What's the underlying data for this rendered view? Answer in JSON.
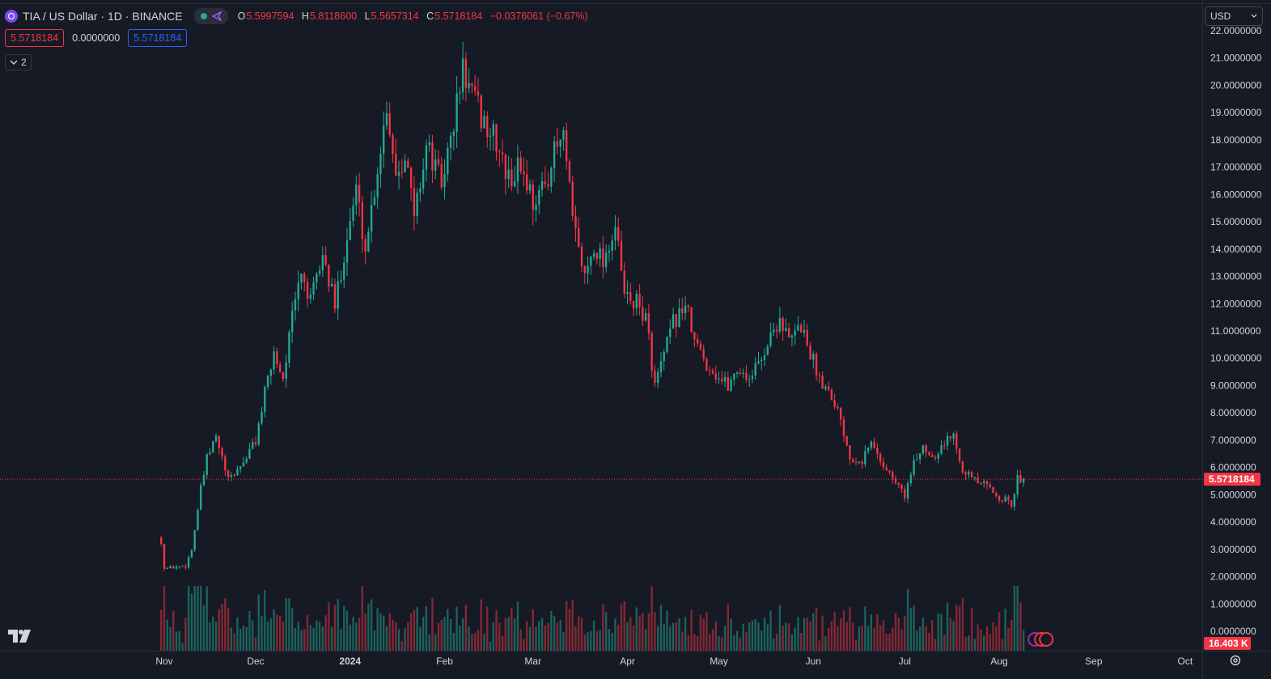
{
  "header": {
    "symbol_title": "TIA / US Dollar · 1D · BINANCE",
    "ohlc": {
      "o_label": "O",
      "o": "5.5997594",
      "h_label": "H",
      "h": "5.8118600",
      "l_label": "L",
      "l": "5.5657314",
      "c_label": "C",
      "c": "5.5718184",
      "change": "−0.0376061 (−0.67%)"
    },
    "price_box_left": "5.5718184",
    "spread_value": "0.0000000",
    "price_box_right": "5.5718184",
    "collapse_count": "2"
  },
  "currency_selector": "USD",
  "last_price_label": "5.5718184",
  "volume_label": "16.403 K",
  "colors": {
    "background": "#161a25",
    "up": "#22ab94",
    "down": "#f23645",
    "text": "#d1d4dc",
    "accent_blue": "#2962ff"
  },
  "chart_data": {
    "type": "candlestick",
    "interval": "1D",
    "exchange": "BINANCE",
    "y_axis": {
      "min": 0,
      "max": 22,
      "ticks": [
        "22.0000000",
        "21.0000000",
        "20.0000000",
        "19.0000000",
        "18.0000000",
        "17.0000000",
        "16.0000000",
        "15.0000000",
        "14.0000000",
        "13.0000000",
        "12.0000000",
        "11.0000000",
        "10.0000000",
        "9.0000000",
        "8.0000000",
        "7.0000000",
        "6.0000000",
        "5.0000000",
        "4.0000000",
        "3.0000000",
        "2.0000000",
        "1.0000000",
        "0.0000000"
      ],
      "last_price": 5.5718184
    },
    "x_axis": {
      "ticks": [
        "Nov",
        "Dec",
        "2024",
        "Feb",
        "Mar",
        "Apr",
        "May",
        "Jun",
        "Jul",
        "Aug",
        "Sep",
        "Oct"
      ]
    },
    "close_path": [
      [
        "2023-10-31",
        3.3
      ],
      [
        "2023-11-01",
        2.3
      ],
      [
        "2023-11-08",
        2.4
      ],
      [
        "2023-11-10",
        3.0
      ],
      [
        "2023-11-13",
        5.2
      ],
      [
        "2023-11-15",
        6.3
      ],
      [
        "2023-11-18",
        7.1
      ],
      [
        "2023-11-22",
        5.5
      ],
      [
        "2023-11-27",
        6.2
      ],
      [
        "2023-12-01",
        7.0
      ],
      [
        "2023-12-04",
        8.7
      ],
      [
        "2023-12-07",
        10.2
      ],
      [
        "2023-12-10",
        9.3
      ],
      [
        "2023-12-13",
        11.5
      ],
      [
        "2023-12-16",
        13.2
      ],
      [
        "2023-12-19",
        12.0
      ],
      [
        "2023-12-23",
        13.8
      ],
      [
        "2023-12-27",
        11.9
      ],
      [
        "2023-12-30",
        13.9
      ],
      [
        "2024-01-03",
        16.2
      ],
      [
        "2024-01-06",
        14.0
      ],
      [
        "2024-01-10",
        17.0
      ],
      [
        "2024-01-13",
        19.3
      ],
      [
        "2024-01-16",
        16.8
      ],
      [
        "2024-01-19",
        17.6
      ],
      [
        "2024-01-22",
        15.2
      ],
      [
        "2024-01-26",
        17.8
      ],
      [
        "2024-01-31",
        16.4
      ],
      [
        "2024-02-03",
        18.0
      ],
      [
        "2024-02-07",
        20.6
      ],
      [
        "2024-02-10",
        19.6
      ],
      [
        "2024-02-14",
        18.6
      ],
      [
        "2024-02-18",
        17.9
      ],
      [
        "2024-02-22",
        16.5
      ],
      [
        "2024-02-26",
        17.1
      ],
      [
        "2024-03-01",
        15.8
      ],
      [
        "2024-03-04",
        16.1
      ],
      [
        "2024-03-08",
        17.5
      ],
      [
        "2024-03-11",
        18.1
      ],
      [
        "2024-03-14",
        15.0
      ],
      [
        "2024-03-18",
        13.0
      ],
      [
        "2024-03-21",
        14.2
      ],
      [
        "2024-03-24",
        13.6
      ],
      [
        "2024-03-28",
        14.8
      ],
      [
        "2024-03-31",
        12.3
      ],
      [
        "2024-04-04",
        12.0
      ],
      [
        "2024-04-07",
        11.5
      ],
      [
        "2024-04-10",
        9.0
      ],
      [
        "2024-04-13",
        10.1
      ],
      [
        "2024-04-16",
        11.3
      ],
      [
        "2024-04-20",
        12.0
      ],
      [
        "2024-04-23",
        10.6
      ],
      [
        "2024-04-27",
        9.8
      ],
      [
        "2024-05-01",
        9.3
      ],
      [
        "2024-05-04",
        9.0
      ],
      [
        "2024-05-07",
        9.6
      ],
      [
        "2024-05-11",
        9.3
      ],
      [
        "2024-05-14",
        9.8
      ],
      [
        "2024-05-18",
        10.8
      ],
      [
        "2024-05-21",
        11.5
      ],
      [
        "2024-05-24",
        10.6
      ],
      [
        "2024-05-28",
        11.2
      ],
      [
        "2024-05-31",
        10.2
      ],
      [
        "2024-06-03",
        9.3
      ],
      [
        "2024-06-07",
        8.7
      ],
      [
        "2024-06-10",
        7.8
      ],
      [
        "2024-06-13",
        6.4
      ],
      [
        "2024-06-17",
        6.3
      ],
      [
        "2024-06-20",
        6.9
      ],
      [
        "2024-06-24",
        6.1
      ],
      [
        "2024-06-27",
        5.6
      ],
      [
        "2024-07-01",
        5.0
      ],
      [
        "2024-07-04",
        6.1
      ],
      [
        "2024-07-07",
        6.8
      ],
      [
        "2024-07-10",
        6.4
      ],
      [
        "2024-07-14",
        6.9
      ],
      [
        "2024-07-17",
        7.2
      ],
      [
        "2024-07-20",
        6.0
      ],
      [
        "2024-07-24",
        5.5
      ],
      [
        "2024-07-28",
        5.3
      ],
      [
        "2024-07-31",
        5.0
      ],
      [
        "2024-08-03",
        4.8
      ],
      [
        "2024-08-05",
        4.6
      ],
      [
        "2024-08-07",
        5.6
      ],
      [
        "2024-08-09",
        5.5718184
      ]
    ],
    "volume_last": "16.403 K"
  }
}
